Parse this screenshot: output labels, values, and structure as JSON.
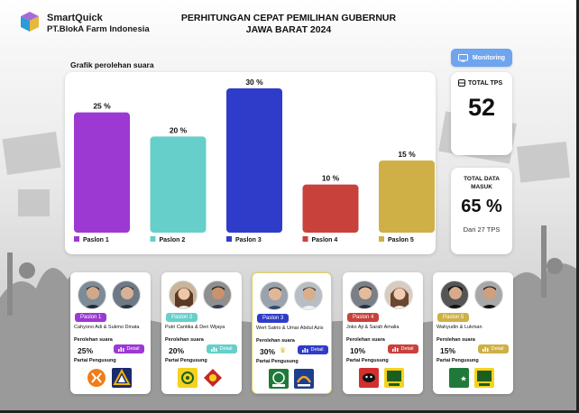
{
  "app": {
    "name": "SmartQuick",
    "company": "PT.BlokA Farm Indonesia",
    "title_line1": "PERHITUNGAN CEPAT PEMILIHAN GUBERNUR",
    "title_line2": "JAWA BARAT 2024",
    "monitoring_label": "Monitoring"
  },
  "stats": {
    "total_tps_label": "TOTAL TPS",
    "total_tps_value": "52",
    "data_masuk_label": "TOTAL DATA MASUK",
    "data_masuk_value": "65 %",
    "data_masuk_sub": "Dari 27 TPS"
  },
  "chart_title": "Grafik perolehan suara",
  "chart_data": {
    "type": "bar",
    "title": "Grafik perolehan suara",
    "categories": [
      "Paslon 1",
      "Paslon 2",
      "Paslon 3",
      "Paslon 4",
      "Paslon 5"
    ],
    "values": [
      25,
      20,
      30,
      10,
      15
    ],
    "value_labels": [
      "25 %",
      "20 %",
      "30 %",
      "10 %",
      "15 %"
    ],
    "colors": [
      "#9b39d2",
      "#67cfca",
      "#2f3cc9",
      "#c9413b",
      "#cfb046"
    ],
    "ylim": [
      0,
      30
    ],
    "grid": false,
    "legend": "bottom"
  },
  "candidates": [
    {
      "paslon": "Paslon 1",
      "names": "Cahyono Adi & Sukmo Dinata",
      "perolehan_label": "Perolehan suara",
      "pct": "25%",
      "detail": "Detail",
      "partai_label": "Partai Pengusung",
      "color": "#9b39d2",
      "parties": [
        "pkb-logo",
        "nasdem-logo"
      ],
      "selected": false
    },
    {
      "paslon": "Paslon 2",
      "names": "Putri Cantika & Deri Wijaya",
      "perolehan_label": "Perolehan suara",
      "pct": "20%",
      "detail": "Detail",
      "partai_label": "Partai Pengusung",
      "color": "#67cfca",
      "parties": [
        "golkar-logo",
        "gerindra-logo"
      ],
      "selected": false
    },
    {
      "paslon": "Paslon 3",
      "names": "Wert Satrio & Umar Abdul Azis",
      "perolehan_label": "Perolehan suara",
      "pct": "30%",
      "detail": "Detail",
      "partai_label": "Partai Pengusung",
      "color": "#2f3cc9",
      "parties": [
        "pkb-green-logo",
        "nasdem-blue-logo"
      ],
      "selected": true
    },
    {
      "paslon": "Paslon 4",
      "names": "Joko Aji & Sarah Amalia",
      "perolehan_label": "Perolehan suara",
      "pct": "10%",
      "detail": "Detail",
      "partai_label": "Partai Pengusung",
      "color": "#c9413b",
      "parties": [
        "pdip-logo",
        "golkar-logo"
      ],
      "selected": false
    },
    {
      "paslon": "Paslon 5",
      "names": "Wahyudin & Lukman",
      "perolehan_label": "Perolehan suara",
      "pct": "15%",
      "detail": "Detail",
      "partai_label": "Partai Pengusung",
      "color": "#cfb046",
      "parties": [
        "ppp-logo",
        "golkar-logo"
      ],
      "selected": false
    }
  ]
}
